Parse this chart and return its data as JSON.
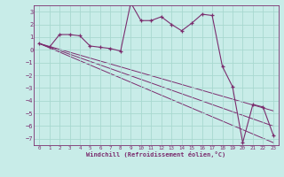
{
  "xlabel": "Windchill (Refroidissement éolien,°C)",
  "bg_color": "#c8ece8",
  "line_color": "#7b2d6e",
  "grid_color": "#a8d8d0",
  "xlim": [
    -0.5,
    23.5
  ],
  "ylim": [
    -7.5,
    3.5
  ],
  "yticks": [
    3,
    2,
    1,
    0,
    -1,
    -2,
    -3,
    -4,
    -5,
    -6,
    -7
  ],
  "xticks": [
    0,
    1,
    2,
    3,
    4,
    5,
    6,
    7,
    8,
    9,
    10,
    11,
    12,
    13,
    14,
    15,
    16,
    17,
    18,
    19,
    20,
    21,
    22,
    23
  ],
  "main_series": {
    "x": [
      0,
      1,
      2,
      3,
      4,
      5,
      6,
      7,
      8,
      9,
      10,
      11,
      12,
      13,
      14,
      15,
      16,
      17,
      18,
      19,
      20,
      21,
      22,
      23
    ],
    "y": [
      0.5,
      0.2,
      1.2,
      1.2,
      1.1,
      0.3,
      0.2,
      0.1,
      -0.1,
      3.7,
      2.3,
      2.3,
      2.6,
      2.0,
      1.5,
      2.1,
      2.8,
      2.7,
      -1.3,
      -2.9,
      -7.3,
      -4.3,
      -4.5,
      -6.7
    ]
  },
  "trend_lines": [
    {
      "x": [
        0,
        23
      ],
      "y": [
        0.5,
        -7.3
      ]
    },
    {
      "x": [
        0,
        23
      ],
      "y": [
        0.5,
        -6.0
      ]
    },
    {
      "x": [
        0,
        23
      ],
      "y": [
        0.5,
        -4.8
      ]
    }
  ]
}
